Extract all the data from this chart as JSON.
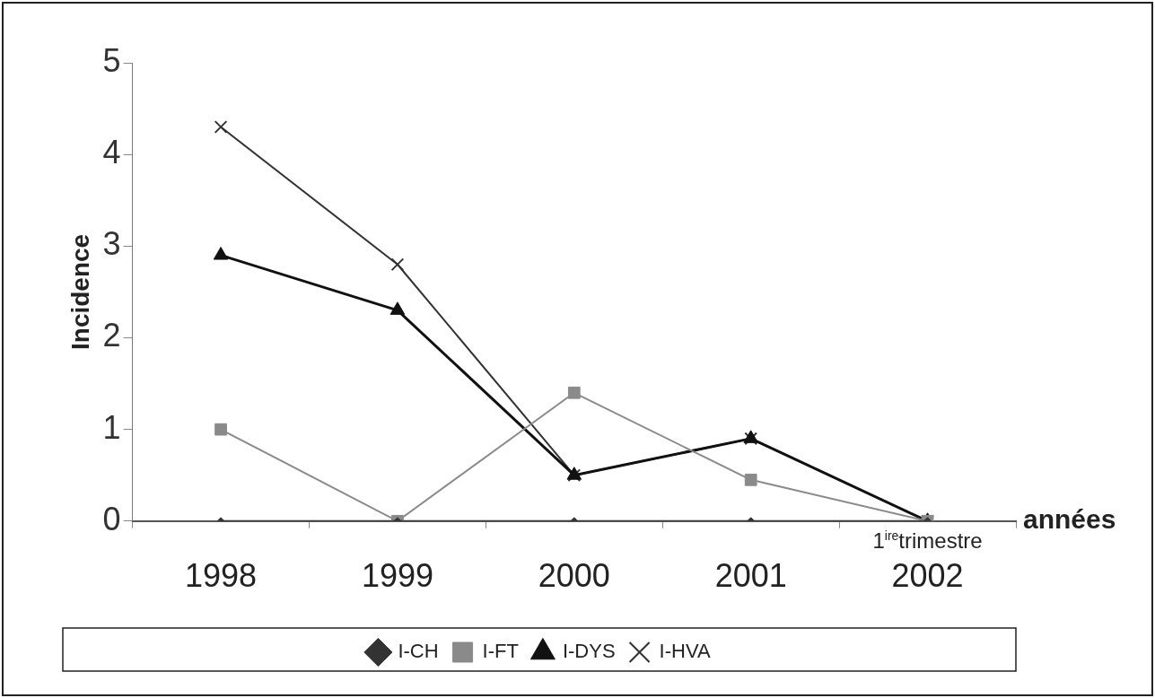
{
  "chart_data": {
    "type": "line",
    "ylabel": "Incidence",
    "xlabel": "années",
    "categories": [
      "1998",
      "1999",
      "2000",
      "2001",
      "2002"
    ],
    "annotations": [
      "1$^{ire}$trimestre"
    ],
    "ylim": [
      0,
      5
    ],
    "yticks": [
      0,
      1,
      2,
      3,
      4,
      5
    ],
    "grid": false,
    "legend": "bottom",
    "series": [
      {
        "name": "I-CH",
        "color": "#333333",
        "marker": "diamond",
        "values": [
          0,
          0,
          0,
          0,
          0
        ]
      },
      {
        "name": "I-FT",
        "color": "#8a8a8a",
        "marker": "square",
        "values": [
          1.0,
          0,
          1.4,
          0.45,
          0
        ]
      },
      {
        "name": "I-DYS",
        "color": "#111111",
        "marker": "triangle",
        "values": [
          2.9,
          2.3,
          0.5,
          0.9,
          0
        ]
      },
      {
        "name": "I-HVA",
        "color": "#333333",
        "marker": "cross",
        "values": [
          4.3,
          2.8,
          0.5,
          0.9,
          0
        ]
      }
    ]
  }
}
